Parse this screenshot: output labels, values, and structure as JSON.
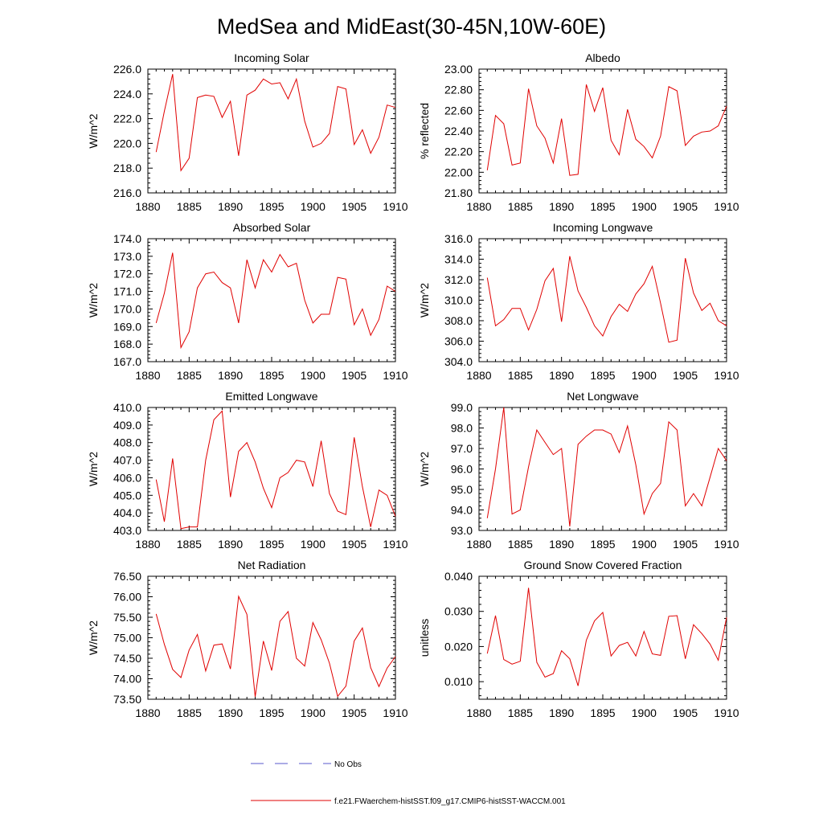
{
  "page_title": "MedSea and MidEast(30-45N,10W-60E)",
  "legend": {
    "no_obs_label": "No Obs",
    "no_obs_color": "#5a5acd",
    "model_label": "f.e21.FWaerchem-histSST.f09_g17.CMIP6-histSST-WACCM.001",
    "model_color": "#e00000"
  },
  "chart_data": [
    {
      "type": "line",
      "title": "Incoming Solar",
      "ylabel": "W/m^2",
      "xlim": [
        1880,
        1910
      ],
      "ylim": [
        216.0,
        226.0
      ],
      "xticks": [
        "1880",
        "1885",
        "1890",
        "1895",
        "1900",
        "1905",
        "1910"
      ],
      "yticks": [
        "216.0",
        "218.0",
        "220.0",
        "222.0",
        "224.0",
        "226.0"
      ],
      "x": [
        1881,
        1882,
        1883,
        1884,
        1885,
        1886,
        1887,
        1888,
        1889,
        1890,
        1891,
        1892,
        1893,
        1894,
        1895,
        1896,
        1897,
        1898,
        1899,
        1900,
        1901,
        1902,
        1903,
        1904,
        1905,
        1906,
        1907,
        1908,
        1909,
        1910
      ],
      "series": [
        {
          "color": "#e00000",
          "values": [
            219.3,
            222.6,
            225.6,
            217.8,
            218.8,
            223.7,
            223.9,
            223.8,
            222.1,
            223.4,
            219.0,
            223.9,
            224.3,
            225.2,
            224.8,
            224.9,
            223.6,
            225.2,
            221.8,
            219.7,
            220.0,
            220.8,
            224.6,
            224.4,
            219.9,
            221.1,
            219.2,
            220.5,
            223.1,
            222.9
          ]
        }
      ]
    },
    {
      "type": "line",
      "title": "Albedo",
      "ylabel": "% reflected",
      "xlim": [
        1880,
        1910
      ],
      "ylim": [
        21.8,
        23.0
      ],
      "xticks": [
        "1880",
        "1885",
        "1890",
        "1895",
        "1900",
        "1905",
        "1910"
      ],
      "yticks": [
        "21.80",
        "22.00",
        "22.20",
        "22.40",
        "22.60",
        "22.80",
        "23.00"
      ],
      "x": [
        1881,
        1882,
        1883,
        1884,
        1885,
        1886,
        1887,
        1888,
        1889,
        1890,
        1891,
        1892,
        1893,
        1894,
        1895,
        1896,
        1897,
        1898,
        1899,
        1900,
        1901,
        1902,
        1903,
        1904,
        1905,
        1906,
        1907,
        1908,
        1909,
        1910
      ],
      "series": [
        {
          "color": "#e00000",
          "values": [
            22.02,
            22.55,
            22.47,
            22.07,
            22.09,
            22.81,
            22.45,
            22.33,
            22.09,
            22.52,
            21.97,
            21.98,
            22.85,
            22.59,
            22.82,
            22.31,
            22.17,
            22.61,
            22.32,
            22.25,
            22.14,
            22.35,
            22.83,
            22.79,
            22.26,
            22.35,
            22.39,
            22.4,
            22.45,
            22.64
          ]
        }
      ]
    },
    {
      "type": "line",
      "title": "Absorbed Solar",
      "ylabel": "W/m^2",
      "xlim": [
        1880,
        1910
      ],
      "ylim": [
        167.0,
        174.0
      ],
      "xticks": [
        "1880",
        "1885",
        "1890",
        "1895",
        "1900",
        "1905",
        "1910"
      ],
      "yticks": [
        "167.0",
        "168.0",
        "169.0",
        "170.0",
        "171.0",
        "172.0",
        "173.0",
        "174.0"
      ],
      "x": [
        1881,
        1882,
        1883,
        1884,
        1885,
        1886,
        1887,
        1888,
        1889,
        1890,
        1891,
        1892,
        1893,
        1894,
        1895,
        1896,
        1897,
        1898,
        1899,
        1900,
        1901,
        1902,
        1903,
        1904,
        1905,
        1906,
        1907,
        1908,
        1909,
        1910
      ],
      "series": [
        {
          "color": "#e00000",
          "values": [
            169.2,
            170.9,
            173.2,
            167.8,
            168.7,
            171.2,
            172.0,
            172.1,
            171.5,
            171.2,
            169.2,
            172.8,
            171.2,
            172.8,
            172.1,
            173.1,
            172.4,
            172.6,
            170.5,
            169.2,
            169.7,
            169.7,
            171.8,
            171.7,
            169.1,
            170.0,
            168.5,
            169.4,
            171.3,
            171.0
          ]
        }
      ]
    },
    {
      "type": "line",
      "title": "Incoming Longwave",
      "ylabel": "W/m^2",
      "xlim": [
        1880,
        1910
      ],
      "ylim": [
        304.0,
        316.0
      ],
      "xticks": [
        "1880",
        "1885",
        "1890",
        "1895",
        "1900",
        "1905",
        "1910"
      ],
      "yticks": [
        "304.0",
        "306.0",
        "308.0",
        "310.0",
        "312.0",
        "314.0",
        "316.0"
      ],
      "x": [
        1881,
        1882,
        1883,
        1884,
        1885,
        1886,
        1887,
        1888,
        1889,
        1890,
        1891,
        1892,
        1893,
        1894,
        1895,
        1896,
        1897,
        1898,
        1899,
        1900,
        1901,
        1902,
        1903,
        1904,
        1905,
        1906,
        1907,
        1908,
        1909,
        1910
      ],
      "series": [
        {
          "color": "#e00000",
          "values": [
            312.2,
            307.5,
            308.1,
            309.2,
            309.2,
            307.1,
            309.1,
            311.9,
            313.1,
            307.9,
            314.3,
            310.9,
            309.3,
            307.5,
            306.5,
            308.4,
            309.6,
            308.9,
            310.6,
            311.6,
            313.3,
            309.7,
            305.9,
            306.1,
            314.1,
            310.7,
            309.0,
            309.7,
            308.0,
            307.5
          ]
        }
      ]
    },
    {
      "type": "line",
      "title": "Emitted Longwave",
      "ylabel": "W/m^2",
      "xlim": [
        1880,
        1910
      ],
      "ylim": [
        403.0,
        410.0
      ],
      "xticks": [
        "1880",
        "1885",
        "1890",
        "1895",
        "1900",
        "1905",
        "1910"
      ],
      "yticks": [
        "403.0",
        "404.0",
        "405.0",
        "406.0",
        "407.0",
        "408.0",
        "409.0",
        "410.0"
      ],
      "x": [
        1881,
        1882,
        1883,
        1884,
        1885,
        1886,
        1887,
        1888,
        1889,
        1890,
        1891,
        1892,
        1893,
        1894,
        1895,
        1896,
        1897,
        1898,
        1899,
        1900,
        1901,
        1902,
        1903,
        1904,
        1905,
        1906,
        1907,
        1908,
        1909,
        1910
      ],
      "series": [
        {
          "color": "#e00000",
          "values": [
            405.9,
            403.5,
            407.1,
            403.1,
            403.2,
            403.2,
            407.0,
            409.3,
            409.8,
            404.9,
            407.5,
            408.0,
            406.9,
            405.4,
            404.3,
            406.0,
            406.3,
            407.0,
            406.9,
            405.5,
            408.1,
            405.1,
            404.1,
            403.9,
            408.3,
            405.5,
            403.2,
            405.3,
            405.0,
            403.8
          ]
        }
      ]
    },
    {
      "type": "line",
      "title": "Net Longwave",
      "ylabel": "W/m^2",
      "xlim": [
        1880,
        1910
      ],
      "ylim": [
        93.0,
        99.0
      ],
      "xticks": [
        "1880",
        "1885",
        "1890",
        "1895",
        "1900",
        "1905",
        "1910"
      ],
      "yticks": [
        "93.0",
        "94.0",
        "95.0",
        "96.0",
        "97.0",
        "98.0",
        "99.0"
      ],
      "x": [
        1881,
        1882,
        1883,
        1884,
        1885,
        1886,
        1887,
        1888,
        1889,
        1890,
        1891,
        1892,
        1893,
        1894,
        1895,
        1896,
        1897,
        1898,
        1899,
        1900,
        1901,
        1902,
        1903,
        1904,
        1905,
        1906,
        1907,
        1908,
        1909,
        1910
      ],
      "series": [
        {
          "color": "#e00000",
          "values": [
            93.6,
            96.0,
            99.0,
            93.8,
            94.0,
            96.1,
            97.9,
            97.3,
            96.7,
            97.0,
            93.2,
            97.2,
            97.6,
            97.9,
            97.9,
            97.7,
            96.8,
            98.1,
            96.2,
            93.8,
            94.8,
            95.3,
            98.3,
            97.9,
            94.2,
            94.8,
            94.2,
            95.6,
            97.0,
            96.4
          ]
        }
      ]
    },
    {
      "type": "line",
      "title": "Net Radiation",
      "ylabel": "W/m^2",
      "xlim": [
        1880,
        1910
      ],
      "ylim": [
        73.5,
        76.5
      ],
      "xticks": [
        "1880",
        "1885",
        "1890",
        "1895",
        "1900",
        "1905",
        "1910"
      ],
      "yticks": [
        "73.50",
        "74.00",
        "74.50",
        "75.00",
        "75.50",
        "76.00",
        "76.50"
      ],
      "x": [
        1881,
        1882,
        1883,
        1884,
        1885,
        1886,
        1887,
        1888,
        1889,
        1890,
        1891,
        1892,
        1893,
        1894,
        1895,
        1896,
        1897,
        1898,
        1899,
        1900,
        1901,
        1902,
        1903,
        1904,
        1905,
        1906,
        1907,
        1908,
        1909,
        1910
      ],
      "series": [
        {
          "color": "#e00000",
          "values": [
            75.58,
            74.84,
            74.23,
            74.03,
            74.7,
            75.08,
            74.19,
            74.82,
            74.85,
            74.24,
            76.01,
            75.57,
            73.56,
            74.92,
            74.2,
            75.4,
            75.64,
            74.5,
            74.31,
            75.37,
            74.95,
            74.38,
            73.57,
            73.82,
            74.92,
            75.24,
            74.27,
            73.81,
            74.26,
            74.54
          ]
        }
      ]
    },
    {
      "type": "line",
      "title": "Ground Snow Covered Fraction",
      "ylabel": "unitless",
      "xlim": [
        1880,
        1910
      ],
      "ylim": [
        0.005,
        0.04
      ],
      "xticks": [
        "1880",
        "1885",
        "1890",
        "1895",
        "1900",
        "1905",
        "1910"
      ],
      "yticks": [
        "0.010",
        "0.020",
        "0.030",
        "0.040"
      ],
      "ytick_values": [
        0.01,
        0.02,
        0.03,
        0.04
      ],
      "x": [
        1881,
        1882,
        1883,
        1884,
        1885,
        1886,
        1887,
        1888,
        1889,
        1890,
        1891,
        1892,
        1893,
        1894,
        1895,
        1896,
        1897,
        1898,
        1899,
        1900,
        1901,
        1902,
        1903,
        1904,
        1905,
        1906,
        1907,
        1908,
        1909,
        1910
      ],
      "series": [
        {
          "color": "#e00000",
          "values": [
            0.018,
            0.0288,
            0.0163,
            0.015,
            0.0158,
            0.0367,
            0.0155,
            0.0113,
            0.0123,
            0.0188,
            0.0165,
            0.0088,
            0.0218,
            0.0273,
            0.0297,
            0.0173,
            0.0203,
            0.0212,
            0.0173,
            0.0243,
            0.0179,
            0.0175,
            0.0286,
            0.0288,
            0.0165,
            0.0262,
            0.0237,
            0.0207,
            0.0161,
            0.0283
          ]
        }
      ]
    }
  ]
}
